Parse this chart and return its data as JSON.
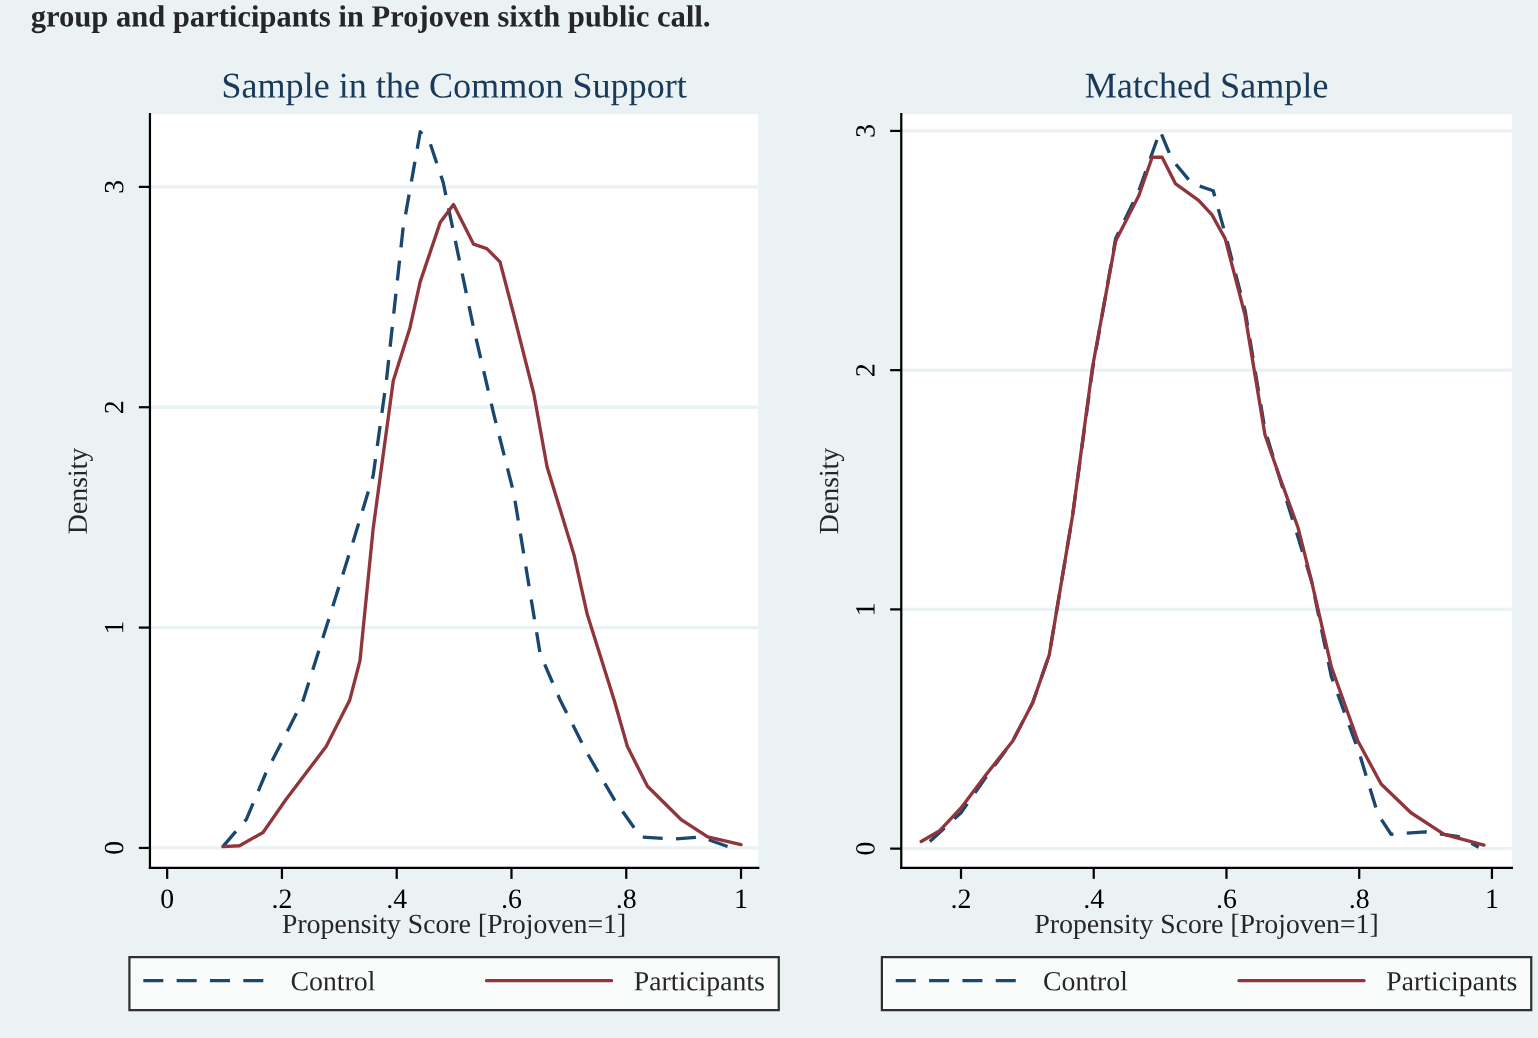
{
  "chart_data": [
    {
      "type": "line",
      "title": "Sample in the Common Support",
      "xlabel": "Propensity Score [Projoven=1]",
      "ylabel": "Density",
      "annotations": [
        "group and participants in Projoven sixth public call."
      ],
      "xlim": [
        -0.03,
        1.03
      ],
      "xticks": [
        0,
        {
          "value": 0.2,
          "label": ".2"
        },
        {
          "value": 0.4,
          "label": ".4"
        },
        {
          "value": 0.6,
          "label": ".6"
        },
        {
          "value": 0.8,
          "label": ".8"
        },
        1
      ],
      "ylim": [
        -0.09,
        3.33
      ],
      "yticks": [
        0,
        1,
        2,
        3
      ],
      "grid": "y",
      "legend": "bottom",
      "series": [
        {
          "name": "Control",
          "color": "#1a476f",
          "line_style": "dashed",
          "x": [
            0.097,
            0.138,
            0.172,
            0.237,
            0.277,
            0.324,
            0.359,
            0.382,
            0.411,
            0.441,
            0.458,
            0.481,
            0.505,
            0.534,
            0.569,
            0.604,
            0.633,
            0.65,
            0.685,
            0.732,
            0.779,
            0.825,
            0.883,
            0.93,
            0.977
          ],
          "values": [
            0.006,
            0.13,
            0.34,
            0.67,
            1.0,
            1.39,
            1.69,
            2.12,
            2.81,
            3.25,
            3.2,
            3.02,
            2.72,
            2.36,
            1.97,
            1.61,
            1.15,
            0.88,
            0.67,
            0.43,
            0.22,
            0.05,
            0.04,
            0.05,
            0.006
          ]
        },
        {
          "name": "Participants",
          "color": "#90353b",
          "line_style": "solid",
          "x": [
            0.097,
            0.126,
            0.167,
            0.207,
            0.242,
            0.277,
            0.318,
            0.336,
            0.359,
            0.394,
            0.423,
            0.441,
            0.476,
            0.499,
            0.534,
            0.557,
            0.58,
            0.604,
            0.639,
            0.662,
            0.709,
            0.732,
            0.779,
            0.802,
            0.837,
            0.895,
            0.942,
            1.0
          ],
          "values": [
            0.006,
            0.01,
            0.07,
            0.22,
            0.34,
            0.46,
            0.67,
            0.85,
            1.45,
            2.12,
            2.36,
            2.57,
            2.84,
            2.92,
            2.74,
            2.72,
            2.66,
            2.42,
            2.06,
            1.73,
            1.33,
            1.06,
            0.67,
            0.46,
            0.28,
            0.13,
            0.05,
            0.015
          ]
        }
      ]
    },
    {
      "type": "line",
      "title": "Matched Sample",
      "xlabel": "Propensity Score [Projoven=1]",
      "ylabel": "Density",
      "xlim": [
        0.11,
        1.03
      ],
      "xticks": [
        {
          "value": 0.2,
          "label": ".2"
        },
        {
          "value": 0.4,
          "label": ".4"
        },
        {
          "value": 0.6,
          "label": ".6"
        },
        {
          "value": 0.8,
          "label": ".8"
        },
        1
      ],
      "ylim": [
        -0.08,
        3.07
      ],
      "yticks": [
        0,
        1,
        2,
        3
      ],
      "grid": "y",
      "legend": "bottom",
      "series": [
        {
          "name": "Control",
          "color": "#1a476f",
          "line_style": "dashed",
          "x": [
            0.153,
            0.2,
            0.238,
            0.278,
            0.308,
            0.333,
            0.368,
            0.398,
            0.433,
            0.468,
            0.5,
            0.518,
            0.548,
            0.58,
            0.6,
            0.628,
            0.658,
            0.68,
            0.708,
            0.728,
            0.758,
            0.8,
            0.828,
            0.848,
            0.9,
            0.95,
            0.98
          ],
          "values": [
            0.03,
            0.15,
            0.3,
            0.45,
            0.61,
            0.81,
            1.39,
            2.0,
            2.55,
            2.75,
            3.0,
            2.88,
            2.78,
            2.75,
            2.55,
            2.25,
            1.75,
            1.55,
            1.3,
            1.12,
            0.72,
            0.4,
            0.145,
            0.06,
            0.07,
            0.05,
            0.006
          ]
        },
        {
          "name": "Participants",
          "color": "#90353b",
          "line_style": "solid",
          "x": [
            0.14,
            0.168,
            0.2,
            0.238,
            0.278,
            0.308,
            0.333,
            0.368,
            0.398,
            0.433,
            0.468,
            0.488,
            0.503,
            0.523,
            0.558,
            0.578,
            0.598,
            0.628,
            0.658,
            0.678,
            0.708,
            0.728,
            0.758,
            0.798,
            0.833,
            0.878,
            0.928,
            0.988
          ],
          "values": [
            0.03,
            0.075,
            0.17,
            0.31,
            0.45,
            0.61,
            0.81,
            1.39,
            2.01,
            2.54,
            2.73,
            2.89,
            2.89,
            2.78,
            2.71,
            2.65,
            2.55,
            2.23,
            1.73,
            1.57,
            1.34,
            1.12,
            0.76,
            0.45,
            0.27,
            0.15,
            0.06,
            0.015
          ]
        }
      ]
    }
  ]
}
